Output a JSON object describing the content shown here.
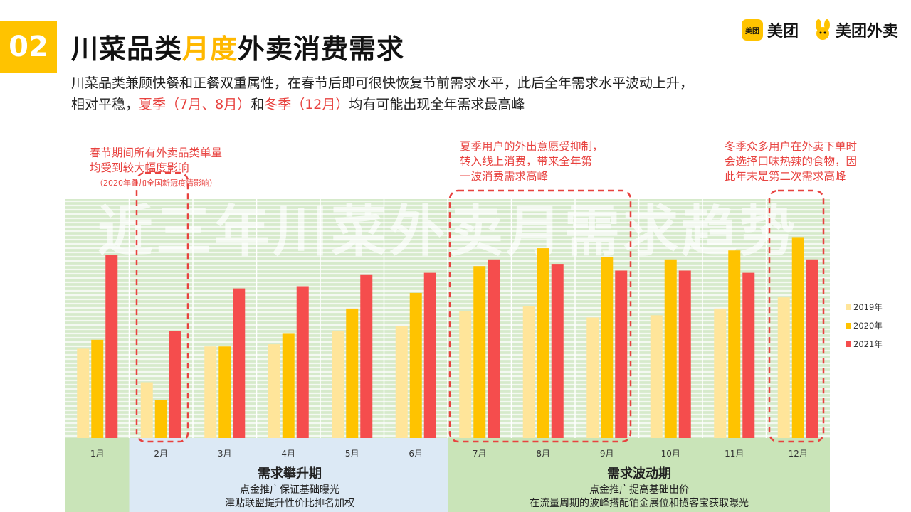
{
  "header": {
    "badge": "02",
    "title_pre": "川菜品类",
    "title_hl": "月度",
    "title_post": "外卖消费需求",
    "subtitle_1": "川菜品类兼顾快餐和正餐双重属性，在春节后即可很快恢复节前需求水平，此后全年需求水平波动上升，",
    "subtitle_2a": "相对平稳，",
    "subtitle_2b": "夏季（7月、8月）",
    "subtitle_2c": "和",
    "subtitle_2d": "冬季（12月）",
    "subtitle_2e": "均有可能出现全年需求最高峰"
  },
  "logos": {
    "meituan_box": "美团",
    "meituan": "美团",
    "waimai": "美团外卖"
  },
  "notes": {
    "spring_1": "春节期间所有外卖品类单量",
    "spring_2": "均受到较大幅度影响",
    "spring_3": "（2020年叠加全国新冠疫情影响）",
    "summer_1": "夏季用户的外出意愿受抑制，",
    "summer_2": "转入线上消费，带来全年第",
    "summer_3": "一波消费需求高峰",
    "winter_1": "冬季众多用户在外卖下单时",
    "winter_2": "会选择口味热辣的食物，因",
    "winter_3": "此年末是第二次需求高峰"
  },
  "watermark": "近三年川菜外卖月需求趋势",
  "phases": {
    "rise_name": "需求攀升期",
    "rise_desc_1": "点金推广保证基础曝光",
    "rise_desc_2": "津贴联盟提升性价比排名加权",
    "wave_name": "需求波动期",
    "wave_desc_1": "点金推广提高基础出价",
    "wave_desc_2": "在流量周期的波峰搭配铂金展位和揽客宝获取曝光"
  },
  "colors": {
    "s2019": "#FFE59A",
    "s2020": "#FFC300",
    "s2021": "#F54D4D",
    "accent": "#FFC300",
    "note_red": "#E8423F",
    "green_bg": "#C9E4B8",
    "blue_bg": "#DCE9F5"
  },
  "chart_data": {
    "type": "bar",
    "categories": [
      "1月",
      "2月",
      "3月",
      "4月",
      "5月",
      "6月",
      "7月",
      "8月",
      "9月",
      "10月",
      "11月",
      "12月"
    ],
    "series": [
      {
        "name": "2019年",
        "values": [
          40,
          25,
          41,
          42,
          48,
          50,
          57,
          59,
          54,
          55,
          58,
          63
        ]
      },
      {
        "name": "2020年",
        "values": [
          44,
          17,
          41,
          47,
          58,
          65,
          77,
          85,
          81,
          80,
          84,
          90
        ]
      },
      {
        "name": "2021年",
        "values": [
          82,
          48,
          67,
          68,
          73,
          74,
          80,
          78,
          75,
          75,
          74,
          80
        ]
      }
    ],
    "ylim": [
      0,
      100
    ],
    "legend": "right",
    "grid": false,
    "xlabel": "",
    "ylabel": ""
  }
}
